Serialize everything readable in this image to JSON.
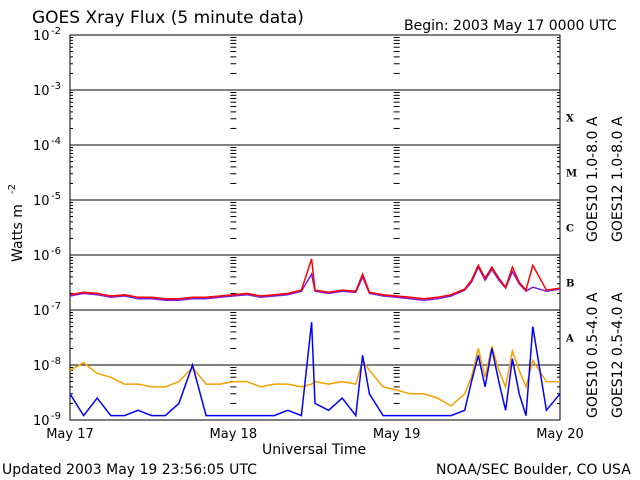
{
  "header": {
    "title": "GOES Xray Flux (5 minute data)",
    "begin": "Begin:  2003 May 17 0000 UTC"
  },
  "footer": {
    "updated": "Updated 2003 May 19 23:56:05 UTC",
    "credit": "NOAA/SEC Boulder, CO USA"
  },
  "axes": {
    "ylabel_main": "Watts m",
    "ylabel_sup": "-2",
    "xlabel": "Universal Time",
    "xticks": [
      "May 17",
      "May 18",
      "May 19",
      "May 20"
    ],
    "yticks": [
      {
        "base": "10",
        "exp": "-2"
      },
      {
        "base": "10",
        "exp": "-3"
      },
      {
        "base": "10",
        "exp": "-4"
      },
      {
        "base": "10",
        "exp": "-5"
      },
      {
        "base": "10",
        "exp": "-6"
      },
      {
        "base": "10",
        "exp": "-7"
      },
      {
        "base": "10",
        "exp": "-8"
      },
      {
        "base": "10",
        "exp": "-9"
      }
    ]
  },
  "flare_classes": [
    "X",
    "M",
    "C",
    "B",
    "A"
  ],
  "legend": {
    "goes10_long": "GOES10 1.0-8.0 A",
    "goes12_long": "GOES12 1.0-8.0 A",
    "goes10_short": "GOES10 0.5-4.0 A",
    "goes12_short": "GOES12 0.5-4.0 A"
  },
  "colors": {
    "goes10_long": "#7a1fd6",
    "goes12_long": "#ff0000",
    "goes10_short": "#f5a000",
    "goes12_short": "#0000ff"
  },
  "chart_data": {
    "type": "line",
    "title": "GOES Xray Flux (5 minute data)",
    "xlabel": "Universal Time",
    "ylabel": "Watts m-2",
    "yscale": "log",
    "ylim": [
      1e-09,
      0.01
    ],
    "xlim": [
      "2003-05-17 00:00",
      "2003-05-20 00:00"
    ],
    "grid": "horizontal at each decade",
    "series": [
      {
        "name": "GOES10 1.0-8.0 A",
        "x": [
          "2003-05-17 00:00",
          "2003-05-17 02:00",
          "2003-05-17 04:00",
          "2003-05-17 06:00",
          "2003-05-17 08:00",
          "2003-05-17 10:00",
          "2003-05-17 12:00",
          "2003-05-17 14:00",
          "2003-05-17 16:00",
          "2003-05-17 18:00",
          "2003-05-17 20:00",
          "2003-05-17 22:00",
          "2003-05-18 00:00",
          "2003-05-18 02:00",
          "2003-05-18 04:00",
          "2003-05-18 06:00",
          "2003-05-18 08:00",
          "2003-05-18 10:00",
          "2003-05-18 11:30",
          "2003-05-18 12:00",
          "2003-05-18 14:00",
          "2003-05-18 16:00",
          "2003-05-18 18:00",
          "2003-05-18 19:00",
          "2003-05-18 20:00",
          "2003-05-18 22:00",
          "2003-05-19 00:00",
          "2003-05-19 02:00",
          "2003-05-19 04:00",
          "2003-05-19 06:00",
          "2003-05-19 08:00",
          "2003-05-19 10:00",
          "2003-05-19 11:00",
          "2003-05-19 12:00",
          "2003-05-19 13:00",
          "2003-05-19 14:00",
          "2003-05-19 15:00",
          "2003-05-19 16:00",
          "2003-05-19 17:00",
          "2003-05-19 18:00",
          "2003-05-19 19:00",
          "2003-05-19 20:00",
          "2003-05-19 22:00",
          "2003-05-20 00:00"
        ],
        "values": [
          1.8e-07,
          2e-07,
          1.9e-07,
          1.7e-07,
          1.8e-07,
          1.6e-07,
          1.6e-07,
          1.5e-07,
          1.5e-07,
          1.6e-07,
          1.6e-07,
          1.7e-07,
          1.8e-07,
          1.9e-07,
          1.7e-07,
          1.8e-07,
          1.9e-07,
          2.2e-07,
          4.5e-07,
          2.2e-07,
          2e-07,
          2.2e-07,
          2.1e-07,
          4e-07,
          2e-07,
          1.8e-07,
          1.7e-07,
          1.6e-07,
          1.5e-07,
          1.6e-07,
          1.8e-07,
          2.3e-07,
          3.2e-07,
          6e-07,
          3.5e-07,
          5.5e-07,
          3.5e-07,
          2.5e-07,
          5e-07,
          3e-07,
          2.2e-07,
          2.6e-07,
          2.2e-07,
          2.4e-07
        ]
      },
      {
        "name": "GOES12 1.0-8.0 A",
        "x": [
          "2003-05-17 00:00",
          "2003-05-17 02:00",
          "2003-05-17 04:00",
          "2003-05-17 06:00",
          "2003-05-17 08:00",
          "2003-05-17 10:00",
          "2003-05-17 12:00",
          "2003-05-17 14:00",
          "2003-05-17 16:00",
          "2003-05-17 18:00",
          "2003-05-17 20:00",
          "2003-05-17 22:00",
          "2003-05-18 00:00",
          "2003-05-18 02:00",
          "2003-05-18 04:00",
          "2003-05-18 06:00",
          "2003-05-18 08:00",
          "2003-05-18 10:00",
          "2003-05-18 11:30",
          "2003-05-18 12:00",
          "2003-05-18 14:00",
          "2003-05-18 16:00",
          "2003-05-18 18:00",
          "2003-05-18 19:00",
          "2003-05-18 20:00",
          "2003-05-18 22:00",
          "2003-05-19 00:00",
          "2003-05-19 02:00",
          "2003-05-19 04:00",
          "2003-05-19 06:00",
          "2003-05-19 08:00",
          "2003-05-19 10:00",
          "2003-05-19 11:00",
          "2003-05-19 12:00",
          "2003-05-19 13:00",
          "2003-05-19 14:00",
          "2003-05-19 15:00",
          "2003-05-19 16:00",
          "2003-05-19 17:00",
          "2003-05-19 18:00",
          "2003-05-19 19:00",
          "2003-05-19 20:00",
          "2003-05-19 22:00",
          "2003-05-20 00:00"
        ],
        "values": [
          1.9e-07,
          2.1e-07,
          2e-07,
          1.8e-07,
          1.9e-07,
          1.7e-07,
          1.7e-07,
          1.6e-07,
          1.6e-07,
          1.7e-07,
          1.7e-07,
          1.8e-07,
          1.9e-07,
          2e-07,
          1.8e-07,
          1.9e-07,
          2e-07,
          2.3e-07,
          8.5e-07,
          2.3e-07,
          2.1e-07,
          2.3e-07,
          2.2e-07,
          4.5e-07,
          2.1e-07,
          1.9e-07,
          1.8e-07,
          1.7e-07,
          1.6e-07,
          1.7e-07,
          1.9e-07,
          2.4e-07,
          3.5e-07,
          6.5e-07,
          3.8e-07,
          6e-07,
          3.8e-07,
          2.6e-07,
          6e-07,
          3.2e-07,
          2.3e-07,
          6.5e-07,
          2.3e-07,
          2.5e-07
        ]
      },
      {
        "name": "GOES10 0.5-4.0 A",
        "x": [
          "2003-05-17 00:00",
          "2003-05-17 02:00",
          "2003-05-17 04:00",
          "2003-05-17 06:00",
          "2003-05-17 08:00",
          "2003-05-17 10:00",
          "2003-05-17 12:00",
          "2003-05-17 14:00",
          "2003-05-17 16:00",
          "2003-05-17 18:00",
          "2003-05-17 20:00",
          "2003-05-17 22:00",
          "2003-05-18 00:00",
          "2003-05-18 02:00",
          "2003-05-18 04:00",
          "2003-05-18 06:00",
          "2003-05-18 08:00",
          "2003-05-18 10:00",
          "2003-05-18 11:30",
          "2003-05-18 12:00",
          "2003-05-18 14:00",
          "2003-05-18 16:00",
          "2003-05-18 18:00",
          "2003-05-18 19:00",
          "2003-05-18 20:00",
          "2003-05-18 22:00",
          "2003-05-19 00:00",
          "2003-05-19 02:00",
          "2003-05-19 04:00",
          "2003-05-19 06:00",
          "2003-05-19 08:00",
          "2003-05-19 10:00",
          "2003-05-19 11:00",
          "2003-05-19 12:00",
          "2003-05-19 13:00",
          "2003-05-19 14:00",
          "2003-05-19 15:00",
          "2003-05-19 16:00",
          "2003-05-19 17:00",
          "2003-05-19 18:00",
          "2003-05-19 19:00",
          "2003-05-19 20:00",
          "2003-05-19 22:00",
          "2003-05-20 00:00"
        ],
        "values": [
          8e-09,
          1.1e-08,
          7e-09,
          6e-09,
          4.5e-09,
          4.5e-09,
          4e-09,
          4e-09,
          5e-09,
          9e-09,
          4.5e-09,
          4.5e-09,
          5e-09,
          5e-09,
          4e-09,
          4.5e-09,
          4.5e-09,
          4e-09,
          4.5e-09,
          5e-09,
          4.5e-09,
          5e-09,
          4.5e-09,
          1.2e-08,
          8e-09,
          4e-09,
          3.5e-09,
          3e-09,
          3e-09,
          2.5e-09,
          1.8e-09,
          3e-09,
          6e-09,
          2e-08,
          6e-09,
          2.2e-08,
          8e-09,
          4e-09,
          1.8e-08,
          8e-09,
          4e-09,
          1.2e-08,
          5e-09,
          5e-09
        ]
      },
      {
        "name": "GOES12 0.5-4.0 A",
        "x": [
          "2003-05-17 00:00",
          "2003-05-17 02:00",
          "2003-05-17 04:00",
          "2003-05-17 06:00",
          "2003-05-17 08:00",
          "2003-05-17 10:00",
          "2003-05-17 12:00",
          "2003-05-17 14:00",
          "2003-05-17 16:00",
          "2003-05-17 18:00",
          "2003-05-17 20:00",
          "2003-05-17 22:00",
          "2003-05-18 00:00",
          "2003-05-18 02:00",
          "2003-05-18 04:00",
          "2003-05-18 06:00",
          "2003-05-18 08:00",
          "2003-05-18 10:00",
          "2003-05-18 11:30",
          "2003-05-18 12:00",
          "2003-05-18 14:00",
          "2003-05-18 16:00",
          "2003-05-18 18:00",
          "2003-05-18 19:00",
          "2003-05-18 20:00",
          "2003-05-18 22:00",
          "2003-05-19 00:00",
          "2003-05-19 02:00",
          "2003-05-19 04:00",
          "2003-05-19 06:00",
          "2003-05-19 08:00",
          "2003-05-19 10:00",
          "2003-05-19 11:00",
          "2003-05-19 12:00",
          "2003-05-19 13:00",
          "2003-05-19 14:00",
          "2003-05-19 15:00",
          "2003-05-19 16:00",
          "2003-05-19 17:00",
          "2003-05-19 18:00",
          "2003-05-19 19:00",
          "2003-05-19 20:00",
          "2003-05-19 22:00",
          "2003-05-20 00:00"
        ],
        "values": [
          3e-09,
          1.2e-09,
          2.5e-09,
          1.2e-09,
          1.2e-09,
          1.5e-09,
          1.2e-09,
          1.2e-09,
          2e-09,
          1e-08,
          1.2e-09,
          1.2e-09,
          1.2e-09,
          1.2e-09,
          1.2e-09,
          1.2e-09,
          1.5e-09,
          1.2e-09,
          6e-08,
          2e-09,
          1.5e-09,
          2.5e-09,
          1.2e-09,
          1.5e-08,
          3e-09,
          1.2e-09,
          1.2e-09,
          1.2e-09,
          1.2e-09,
          1.2e-09,
          1.2e-09,
          1.5e-09,
          5e-09,
          1.5e-08,
          4e-09,
          2e-08,
          5e-09,
          1.5e-09,
          1.3e-08,
          3e-09,
          1.2e-09,
          5e-08,
          1.5e-09,
          3e-09
        ]
      }
    ]
  }
}
